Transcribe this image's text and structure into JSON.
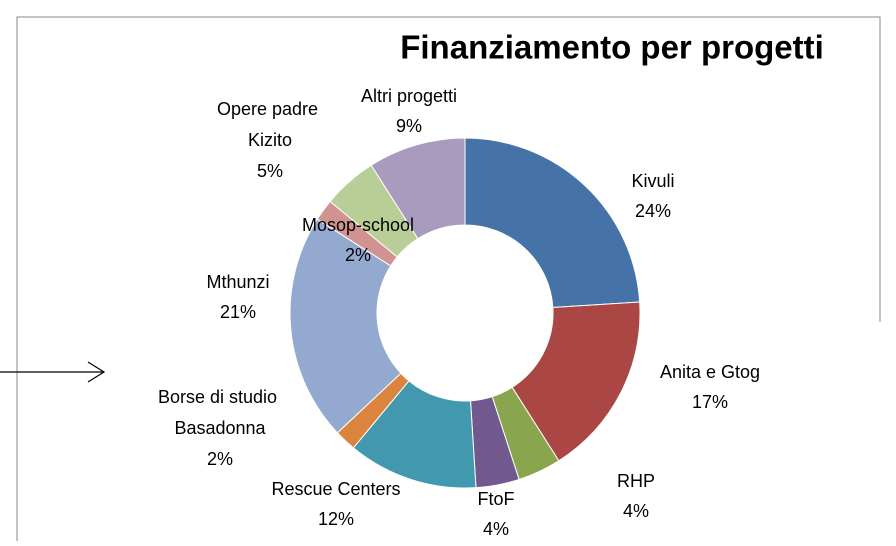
{
  "chart_data": {
    "type": "donut",
    "title": "Finanziamento per progetti",
    "categories": [
      "Kivuli",
      "Anita e Gtog",
      "RHP",
      "FtoF",
      "Rescue Centers",
      "Borse di studio Basadonna",
      "Mthunzi",
      "Mosop-school",
      "Opere padre Kizito",
      "Altri progetti"
    ],
    "values": [
      24,
      17,
      4,
      4,
      12,
      2,
      21,
      2,
      5,
      9
    ],
    "value_labels": [
      "24%",
      "17%",
      "4%",
      "4%",
      "12%",
      "2%",
      "21%",
      "2%",
      "5%",
      "9%"
    ],
    "colors": [
      "#4572a7",
      "#aa4643",
      "#89a54e",
      "#71588f",
      "#4198af",
      "#db843d",
      "#93a9cf",
      "#d19392",
      "#b9cd96",
      "#a99bbd"
    ]
  }
}
